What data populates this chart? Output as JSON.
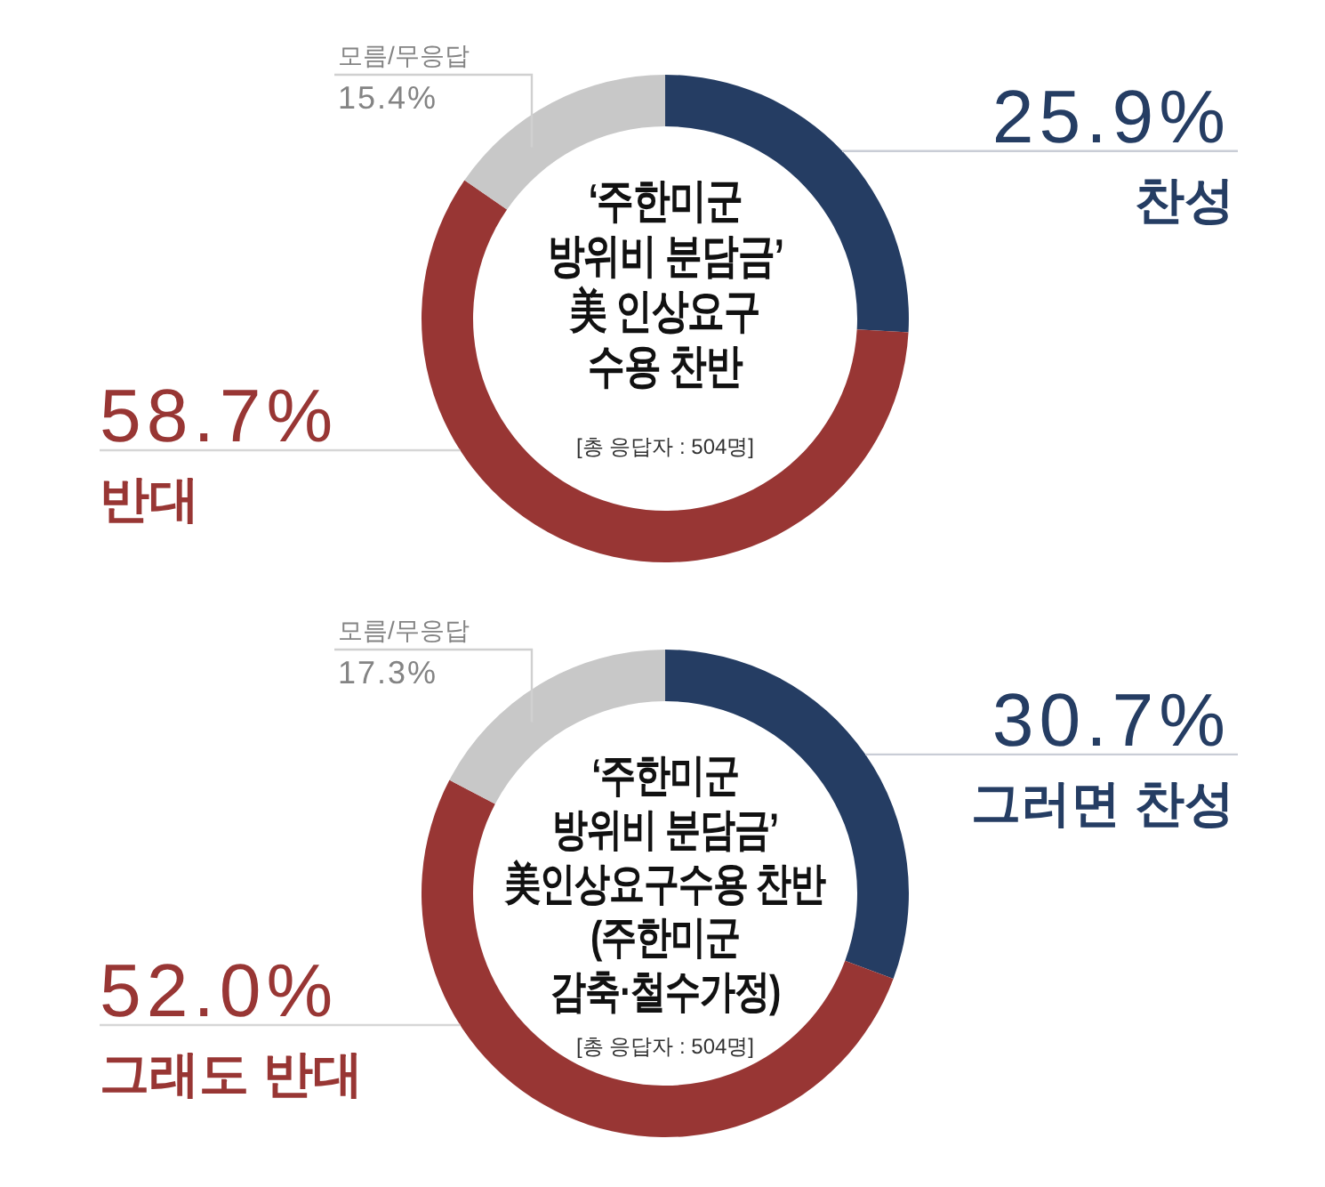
{
  "chart_data": [
    {
      "type": "donut",
      "title": "‘주한미군\n방위비 분담금’\n美 인상요구\n수용 찬반",
      "categories": [
        "찬성",
        "반대",
        "모름/무응답"
      ],
      "values": [
        25.9,
        58.7,
        15.4
      ],
      "colors": [
        "#253d63",
        "#983634",
        "#c8c8c8"
      ],
      "value_labels": [
        "25.9%",
        "58.7%",
        "15.4%"
      ],
      "annotations": [
        "[총 응답자 : 504명]"
      ]
    },
    {
      "type": "donut",
      "title": "‘주한미군\n방위비 분담금’\n美인상요구수용 찬반\n(주한미군\n감축·철수가정)",
      "categories": [
        "그러면 찬성",
        "그래도 반대",
        "모름/무응답"
      ],
      "values": [
        30.7,
        52.0,
        17.3
      ],
      "colors": [
        "#253d63",
        "#983634",
        "#c8c8c8"
      ],
      "value_labels": [
        "30.7%",
        "52.0%",
        "17.3%"
      ],
      "annotations": [
        "[총 응답자 : 504명]"
      ]
    }
  ]
}
